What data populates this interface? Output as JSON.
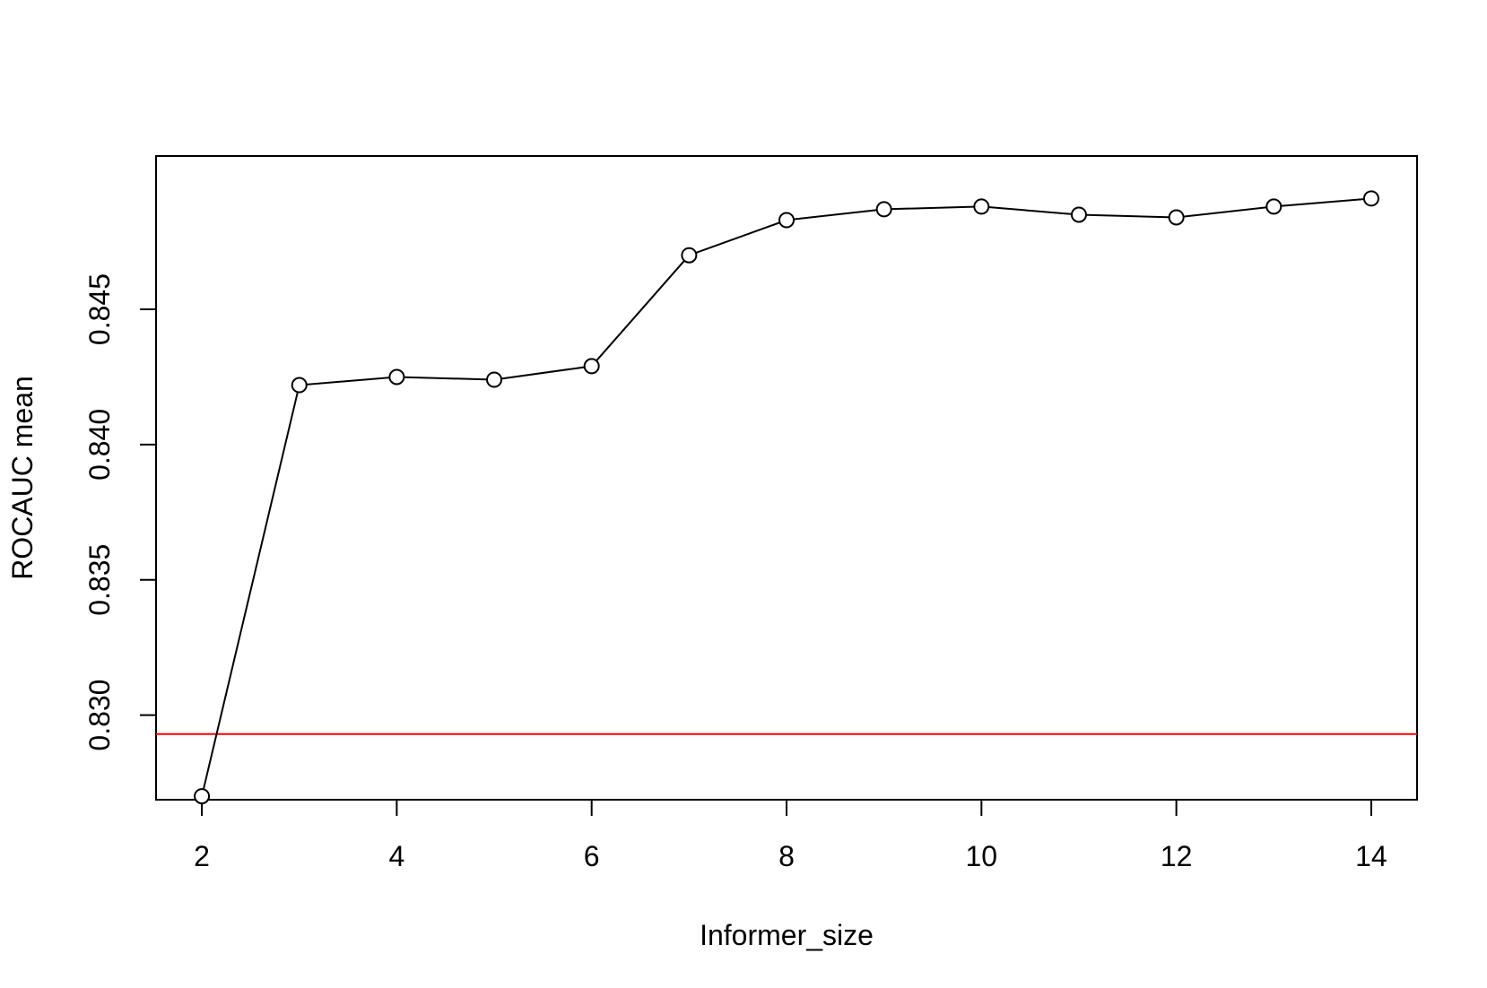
{
  "chart_data": {
    "type": "line",
    "title": "",
    "xlabel": "Informer_size",
    "ylabel": "ROCAUC mean",
    "xlim": [
      1.53,
      14.47
    ],
    "ylim": [
      0.82687,
      0.85067
    ],
    "x_ticks": [
      2,
      4,
      6,
      8,
      10,
      12,
      14
    ],
    "y_ticks": [
      0.83,
      0.835,
      0.84,
      0.845
    ],
    "x_tick_labels": [
      "2",
      "4",
      "6",
      "8",
      "10",
      "12",
      "14"
    ],
    "y_tick_labels": [
      "0.830",
      "0.835",
      "0.840",
      "0.845"
    ],
    "grid": false,
    "legend": "none",
    "series": [
      {
        "color": "#000000",
        "marker": "open-circle",
        "x": [
          2,
          3,
          4,
          5,
          6,
          7,
          8,
          9,
          10,
          11,
          12,
          13,
          14
        ],
        "y": [
          0.827,
          0.8422,
          0.8425,
          0.8424,
          0.8429,
          0.847,
          0.8483,
          0.8487,
          0.8488,
          0.8485,
          0.8484,
          0.8488,
          0.8491
        ]
      }
    ],
    "reference_lines": [
      {
        "orientation": "horizontal",
        "y": 0.8293,
        "color": "#ff0000"
      }
    ]
  }
}
